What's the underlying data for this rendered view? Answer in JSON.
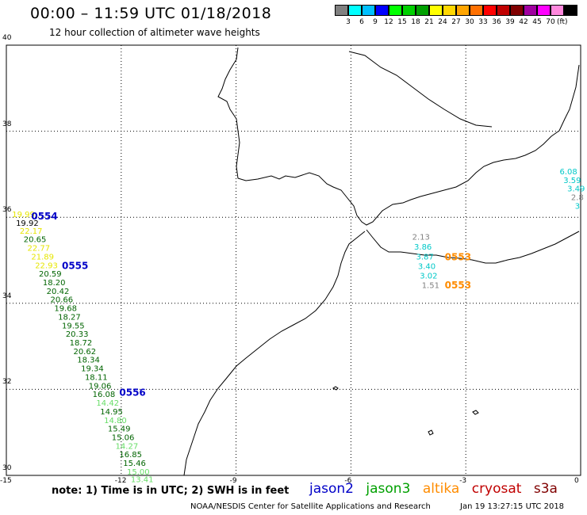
{
  "title": "00:00 – 11:59 UTC 01/18/2018",
  "subtitle": "12 hour collection of altimeter wave heights",
  "colorbar": {
    "unit": "(ft)",
    "colors": [
      "#808080",
      "#00ffff",
      "#00c0ff",
      "#0000ff",
      "#00ff00",
      "#00d000",
      "#00a000",
      "#ffff00",
      "#ffd700",
      "#ffa500",
      "#ff7000",
      "#ff0000",
      "#c00000",
      "#800000",
      "#a000a0",
      "#ff00ff",
      "#ff88dd",
      "#000000"
    ],
    "labels": [
      "3",
      "6",
      "9",
      "12",
      "15",
      "18",
      "21",
      "24",
      "27",
      "30",
      "33",
      "36",
      "39",
      "42",
      "45",
      "70"
    ]
  },
  "axes": {
    "lon_ticks": [
      "-15",
      "-12",
      "-9",
      "-6",
      "-3",
      "0"
    ],
    "lat_ticks": [
      "40",
      "38",
      "36",
      "34",
      "32",
      "30"
    ]
  },
  "satellite_colors": {
    "jason2": "#0000c8",
    "jason3": "#00a000",
    "altika": "#ff8c00",
    "cryosat": "#c00000",
    "s3a": "#800000"
  },
  "tracks": [
    {
      "satellite": "jason3",
      "points": [
        {
          "lon": -14.85,
          "lat": 36.0,
          "v": "19.99",
          "c": "#e6e600"
        },
        {
          "lon": -14.75,
          "lat": 35.8,
          "v": "19.92",
          "c": "#000000"
        },
        {
          "lon": -14.65,
          "lat": 35.62,
          "v": "22.17",
          "c": "#e6e600"
        },
        {
          "lon": -14.55,
          "lat": 35.42,
          "v": "20.65",
          "c": "#006400"
        },
        {
          "lon": -14.45,
          "lat": 35.22,
          "v": "22.77",
          "c": "#e6e600"
        },
        {
          "lon": -14.35,
          "lat": 35.02,
          "v": "21.89",
          "c": "#e6e600"
        },
        {
          "lon": -14.25,
          "lat": 34.82,
          "v": "22.93",
          "c": "#e6e600"
        },
        {
          "lon": -14.15,
          "lat": 34.62,
          "v": "20.59",
          "c": "#006400"
        },
        {
          "lon": -14.05,
          "lat": 34.42,
          "v": "18.20",
          "c": "#006400"
        },
        {
          "lon": -13.95,
          "lat": 34.22,
          "v": "20.42",
          "c": "#006400"
        },
        {
          "lon": -13.85,
          "lat": 34.02,
          "v": "20.66",
          "c": "#006400"
        },
        {
          "lon": -13.75,
          "lat": 33.82,
          "v": "19.68",
          "c": "#006400"
        },
        {
          "lon": -13.65,
          "lat": 33.62,
          "v": "18.27",
          "c": "#006400"
        },
        {
          "lon": -13.55,
          "lat": 33.42,
          "v": "19.55",
          "c": "#006400"
        },
        {
          "lon": -13.45,
          "lat": 33.22,
          "v": "20.33",
          "c": "#006400"
        },
        {
          "lon": -13.35,
          "lat": 33.02,
          "v": "18.72",
          "c": "#006400"
        },
        {
          "lon": -13.25,
          "lat": 32.82,
          "v": "20.62",
          "c": "#006400"
        },
        {
          "lon": -13.15,
          "lat": 32.62,
          "v": "18.34",
          "c": "#006400"
        },
        {
          "lon": -13.05,
          "lat": 32.42,
          "v": "19.34",
          "c": "#006400"
        },
        {
          "lon": -12.95,
          "lat": 32.22,
          "v": "18.11",
          "c": "#006400"
        },
        {
          "lon": -12.85,
          "lat": 32.02,
          "v": "19.06",
          "c": "#006400"
        },
        {
          "lon": -12.75,
          "lat": 31.82,
          "v": "16.08",
          "c": "#006400"
        },
        {
          "lon": -12.65,
          "lat": 31.62,
          "v": "14.42",
          "c": "#66dd66"
        },
        {
          "lon": -12.55,
          "lat": 31.42,
          "v": "14.95",
          "c": "#006400"
        },
        {
          "lon": -12.45,
          "lat": 31.22,
          "v": "14.80",
          "c": "#66dd66"
        },
        {
          "lon": -12.35,
          "lat": 31.02,
          "v": "15.49",
          "c": "#006400"
        },
        {
          "lon": -12.25,
          "lat": 30.82,
          "v": "15.06",
          "c": "#006400"
        },
        {
          "lon": -12.15,
          "lat": 30.62,
          "v": "14.27",
          "c": "#66dd66"
        },
        {
          "lon": -12.05,
          "lat": 30.42,
          "v": "16.85",
          "c": "#006400"
        },
        {
          "lon": -11.95,
          "lat": 30.22,
          "v": "15.46",
          "c": "#006400"
        },
        {
          "lon": -11.85,
          "lat": 30.02,
          "v": "15.00",
          "c": "#66dd66"
        },
        {
          "lon": -11.75,
          "lat": 29.84,
          "v": "13.41",
          "c": "#66dd66"
        }
      ]
    },
    {
      "satellite": "altika",
      "points": [
        {
          "lon": -4.4,
          "lat": 35.48,
          "v": "2.13",
          "c": "#808080"
        },
        {
          "lon": -4.35,
          "lat": 35.25,
          "v": "3.86",
          "c": "#00c8c8"
        },
        {
          "lon": -4.3,
          "lat": 35.02,
          "v": "3.87",
          "c": "#00c8c8"
        },
        {
          "lon": -4.25,
          "lat": 34.8,
          "v": "3.40",
          "c": "#00c8c8"
        },
        {
          "lon": -4.2,
          "lat": 34.58,
          "v": "3.02",
          "c": "#00c8c8"
        },
        {
          "lon": -4.15,
          "lat": 34.36,
          "v": "1.51",
          "c": "#808080"
        }
      ]
    },
    {
      "satellite": "jason2",
      "points": [
        {
          "lon": -0.55,
          "lat": 37.0,
          "v": "6.08",
          "c": "#00c8c8"
        },
        {
          "lon": -0.45,
          "lat": 36.8,
          "v": "3.59",
          "c": "#00c8c8"
        },
        {
          "lon": -0.35,
          "lat": 36.6,
          "v": "3.49",
          "c": "#00c8c8"
        },
        {
          "lon": -0.25,
          "lat": 36.4,
          "v": "2.8",
          "c": "#808080"
        },
        {
          "lon": -0.15,
          "lat": 36.2,
          "v": "3",
          "c": "#00c8c8"
        }
      ]
    }
  ],
  "time_labels": [
    {
      "lon": -14.35,
      "lat": 35.95,
      "t": "0554",
      "c": "#0000c8"
    },
    {
      "lon": -13.55,
      "lat": 34.8,
      "t": "0555",
      "c": "#0000c8"
    },
    {
      "lon": -12.05,
      "lat": 31.85,
      "t": "0556",
      "c": "#0000c8"
    },
    {
      "lon": -3.55,
      "lat": 35.0,
      "t": "0553",
      "c": "#ff8c00"
    },
    {
      "lon": -3.55,
      "lat": 34.35,
      "t": "0553",
      "c": "#ff8c00"
    }
  ],
  "note": "note: 1) Time is in UTC; 2) SWH is in feet",
  "legend": {
    "jason2": "jason2",
    "jason3": "jason3",
    "altika": "altika",
    "cryosat": "cryosat",
    "s3a": "s3a"
  },
  "credit": "NOAA/NESDIS Center for Satellite Applications and Research",
  "timestamp": "Jan 19 13:27:15 UTC 2018"
}
